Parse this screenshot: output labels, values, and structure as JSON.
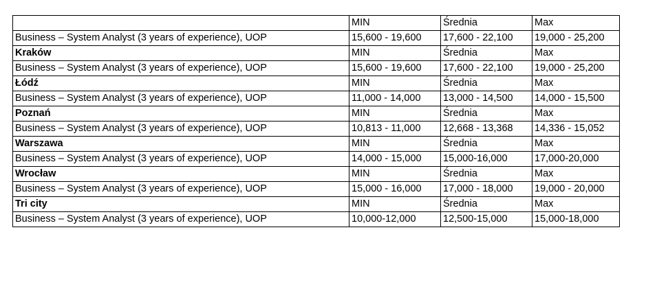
{
  "table": {
    "rows": [
      {
        "type": "header",
        "cells": [
          "",
          "MIN",
          "Średnia",
          "Max"
        ]
      },
      {
        "type": "data",
        "cells": [
          "Business – System Analyst (3 years of experience), UOP",
          "15,600 - 19,600",
          "17,600 - 22,100",
          "19,000 - 25,200"
        ]
      },
      {
        "type": "city",
        "cells": [
          "Kraków",
          "MIN",
          "Średnia",
          "Max"
        ]
      },
      {
        "type": "data",
        "cells": [
          "Business – System Analyst (3 years of experience), UOP",
          "15,600 - 19,600",
          "17,600 - 22,100",
          "19,000 - 25,200"
        ]
      },
      {
        "type": "city",
        "cells": [
          "Łódź",
          "MIN",
          "Średnia",
          "Max"
        ]
      },
      {
        "type": "data",
        "cells": [
          "Business – System Analyst (3 years of experience), UOP",
          "11,000 - 14,000",
          "13,000 - 14,500",
          "14,000 - 15,500"
        ]
      },
      {
        "type": "city",
        "cells": [
          "Poznań",
          "MIN",
          "Średnia",
          "Max"
        ]
      },
      {
        "type": "data",
        "cells": [
          "Business – System Analyst (3 years of experience), UOP",
          "10,813 - 11,000",
          "12,668 - 13,368",
          "14,336 - 15,052"
        ]
      },
      {
        "type": "city",
        "cells": [
          "Warszawa",
          "MIN",
          "Średnia",
          "Max"
        ]
      },
      {
        "type": "data",
        "cells": [
          "Business – System Analyst (3 years of experience), UOP",
          "14,000 - 15,000",
          "15,000-16,000",
          "17,000-20,000"
        ]
      },
      {
        "type": "city",
        "cells": [
          "Wrocław",
          "MIN",
          "Średnia",
          "Max"
        ]
      },
      {
        "type": "data",
        "cells": [
          "Business – System Analyst (3 years of experience), UOP",
          "15,000 - 16,000",
          "17,000 - 18,000",
          "19,000 - 20,000"
        ]
      },
      {
        "type": "city",
        "cells": [
          "Tri city",
          "MIN",
          "Średnia",
          "Max"
        ]
      },
      {
        "type": "data",
        "cells": [
          "Business – System Analyst (3 years of experience), UOP",
          "10,000-12,000",
          "12,500-15,000",
          "15,000-18,000"
        ]
      }
    ]
  }
}
